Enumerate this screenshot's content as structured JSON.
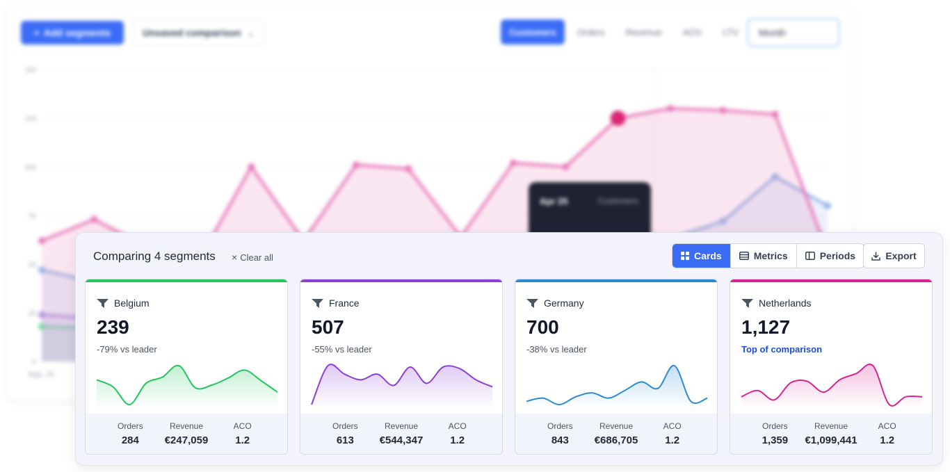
{
  "background": {
    "add_segments_label": "Add segments",
    "comparison_select": "Unsaved comparison",
    "metric_tabs": [
      {
        "label": "Customers",
        "active": true
      },
      {
        "label": "Orders",
        "active": false
      },
      {
        "label": "Revenue",
        "active": false
      },
      {
        "label": "AOV",
        "active": false
      },
      {
        "label": "LTV",
        "active": false
      }
    ],
    "period_select": "Month",
    "y_ticks": [
      "150",
      "125",
      "100",
      "75",
      "50",
      "25",
      "0"
    ],
    "x_first_tick": "Sep, 24",
    "colors": {
      "netherlands": "#e879b9",
      "germany": "#93b4e6",
      "france": "#b49ae6",
      "belgium": "#6ee7a0"
    },
    "series": {
      "netherlands": [
        62,
        73,
        59,
        52,
        100,
        62,
        101,
        99,
        64,
        102,
        100,
        125,
        130,
        129,
        127,
        56
      ],
      "germany": [
        47,
        41,
        36,
        33,
        30,
        29,
        28,
        27,
        26,
        35,
        36,
        52,
        63,
        72,
        95,
        80
      ],
      "france": [
        24,
        22,
        20,
        19,
        18,
        17,
        16,
        16,
        15,
        15,
        16,
        18,
        20,
        22,
        24,
        20
      ],
      "belgium": [
        18,
        17,
        16,
        15,
        14,
        13,
        13,
        12,
        12,
        12,
        13,
        14,
        15,
        16,
        17,
        15
      ]
    },
    "tooltip_title": "Apr 25",
    "tooltip_sub": "Customers"
  },
  "panel": {
    "title": "Comparing 4 segments",
    "clear_all": "Clear all",
    "views": [
      {
        "label": "Cards",
        "icon": "grid-icon",
        "active": true
      },
      {
        "label": "Metrics",
        "icon": "table-icon",
        "active": false
      },
      {
        "label": "Periods",
        "icon": "columns-icon",
        "active": false
      }
    ],
    "export_label": "Export"
  },
  "cards": [
    {
      "name": "Belgium",
      "value": "239",
      "delta": "-79% vs leader",
      "color": "#22c55e",
      "spark": [
        14,
        6,
        -14,
        10,
        17,
        30,
        5,
        8,
        16,
        25,
        13,
        0
      ],
      "stats": [
        {
          "label": "Orders",
          "value": "284"
        },
        {
          "label": "Revenue",
          "value": "€247,059"
        },
        {
          "label": "ACO",
          "value": "1.2"
        }
      ]
    },
    {
      "name": "France",
      "value": "507",
      "delta": "-55% vs leader",
      "color": "#8b3fd9",
      "spark": [
        -25,
        30,
        18,
        10,
        18,
        2,
        28,
        5,
        28,
        26,
        10,
        0
      ],
      "stats": [
        {
          "label": "Orders",
          "value": "613"
        },
        {
          "label": "Revenue",
          "value": "€544,347"
        },
        {
          "label": "ACO",
          "value": "1.2"
        }
      ]
    },
    {
      "name": "Germany",
      "value": "700",
      "delta": "-38% vs leader",
      "color": "#2b8ad6",
      "spark": [
        -5,
        0,
        -10,
        2,
        8,
        0,
        12,
        25,
        15,
        50,
        -5,
        0
      ],
      "stats": [
        {
          "label": "Orders",
          "value": "843"
        },
        {
          "label": "Revenue",
          "value": "€686,705"
        },
        {
          "label": "ACO",
          "value": "1.2"
        }
      ]
    },
    {
      "name": "Netherlands",
      "value": "1,127",
      "delta": "Top of comparison",
      "color": "#d6258f",
      "leader": true,
      "spark": [
        0,
        8,
        -4,
        18,
        20,
        6,
        22,
        30,
        40,
        -10,
        0,
        0
      ],
      "stats": [
        {
          "label": "Orders",
          "value": "1,359"
        },
        {
          "label": "Revenue",
          "value": "€1,099,441"
        },
        {
          "label": "ACO",
          "value": "1.2"
        }
      ]
    }
  ]
}
